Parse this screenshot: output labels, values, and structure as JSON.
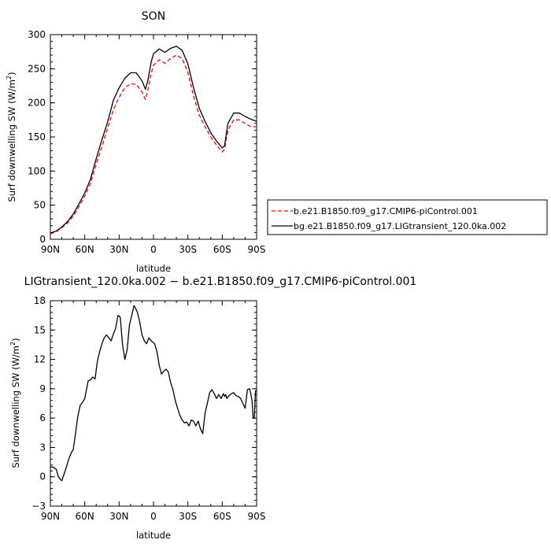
{
  "chart_data": [
    {
      "type": "line",
      "title": "SON",
      "xlabel": "latitude",
      "ylabel": "Surf downwelling SW (W/m²)",
      "ylabel_prefix": "Surf downwelling SW (W/m",
      "ylabel_sup": "2",
      "ylabel_suffix": ")",
      "xlim": [
        90,
        -90
      ],
      "ylim": [
        0,
        300
      ],
      "xticks": [
        90,
        60,
        30,
        0,
        -30,
        -60,
        -90
      ],
      "xtick_labels": [
        "90N",
        "60N",
        "30N",
        "0",
        "30S",
        "60S",
        "90S"
      ],
      "yticks": [
        0,
        50,
        100,
        150,
        200,
        250,
        300
      ],
      "ytick_labels": [
        "0",
        "50",
        "100",
        "150",
        "200",
        "250",
        "300"
      ],
      "legend_position": "right",
      "x": [
        90,
        85,
        80,
        75,
        70,
        65,
        60,
        55,
        50,
        45,
        40,
        35,
        30,
        25,
        20,
        15,
        10,
        7,
        5,
        2,
        0,
        -5,
        -10,
        -15,
        -20,
        -25,
        -30,
        -35,
        -40,
        -45,
        -50,
        -55,
        -60,
        -62,
        -65,
        -70,
        -75,
        -80,
        -85,
        -90
      ],
      "series": [
        {
          "name": "b.e21.B1850.f09_g17.CMIP6-piControl.001",
          "color": "#ff0000",
          "dash": "dashed",
          "values": [
            8,
            11,
            17,
            24,
            34,
            48,
            63,
            82,
            110,
            136,
            163,
            190,
            208,
            222,
            228,
            227,
            216,
            205,
            218,
            243,
            255,
            263,
            258,
            265,
            270,
            265,
            245,
            210,
            182,
            165,
            150,
            138,
            128,
            132,
            160,
            175,
            175,
            170,
            165,
            165
          ]
        },
        {
          "name": "bg.e21.B1850.f09_g17.LIGtransient_120.0ka.002",
          "color": "#000000",
          "dash": "solid",
          "values": [
            9,
            12,
            18,
            26,
            37,
            52,
            68,
            88,
            118,
            146,
            172,
            204,
            222,
            236,
            244,
            244,
            232,
            220,
            232,
            260,
            272,
            279,
            274,
            280,
            283,
            277,
            257,
            222,
            192,
            173,
            156,
            144,
            134,
            137,
            170,
            185,
            185,
            180,
            176,
            173
          ]
        }
      ]
    },
    {
      "type": "line",
      "title": "LIGtransient_120.0ka.002 − b.e21.B1850.f09_g17.CMIP6-piControl.001",
      "xlabel": "latitude",
      "ylabel": "Surf downwelling SW (W/m²)",
      "ylabel_prefix": "Surf downwelling SW (W/m",
      "ylabel_sup": "2",
      "ylabel_suffix": ")",
      "xlim": [
        90,
        -90
      ],
      "ylim": [
        -3,
        18
      ],
      "xticks": [
        90,
        60,
        30,
        0,
        -30,
        -60,
        -90
      ],
      "xtick_labels": [
        "90N",
        "60N",
        "30N",
        "0",
        "30S",
        "60S",
        "90S"
      ],
      "yticks": [
        -3,
        0,
        3,
        6,
        9,
        12,
        15,
        18
      ],
      "ytick_labels": [
        "−3",
        "0",
        "3",
        "6",
        "9",
        "12",
        "15",
        "18"
      ],
      "x": [
        90,
        88,
        85,
        83,
        81,
        80,
        78,
        76,
        74,
        72,
        70,
        68,
        66,
        64,
        62,
        60,
        57,
        55,
        53,
        51,
        49,
        47,
        45,
        43,
        41,
        39,
        37,
        35,
        33,
        31,
        29,
        27,
        25,
        23,
        21,
        19,
        17,
        16,
        14,
        12,
        10,
        8,
        6,
        4,
        2,
        1,
        0,
        -1,
        -3,
        -5,
        -7,
        -9,
        -11,
        -13,
        -15,
        -17,
        -19,
        -21,
        -23,
        -25,
        -27,
        -29,
        -31,
        -33,
        -35,
        -37,
        -39,
        -41,
        -43,
        -45,
        -47,
        -49,
        -51,
        -53,
        -55,
        -57,
        -59,
        -61,
        -62,
        -63,
        -64,
        -66,
        -68,
        -70,
        -72,
        -74,
        -76,
        -78,
        -80,
        -82,
        -84,
        -86,
        -87,
        -88,
        -89,
        -90
      ],
      "series": [
        {
          "name": "",
          "color": "#000000",
          "dash": "solid",
          "values": [
            1.0,
            1.0,
            0.8,
            0.0,
            -0.3,
            -0.4,
            0.3,
            1.0,
            1.8,
            2.4,
            2.8,
            4.5,
            6.2,
            7.3,
            7.6,
            8.0,
            9.8,
            9.9,
            10.2,
            10.0,
            11.8,
            12.8,
            13.6,
            14.2,
            14.5,
            14.2,
            13.9,
            14.6,
            15.2,
            16.5,
            16.3,
            13.5,
            12.0,
            13.0,
            15.5,
            16.5,
            17.5,
            17.3,
            16.8,
            15.8,
            14.5,
            13.9,
            13.6,
            14.2,
            13.9,
            13.8,
            13.7,
            13.6,
            12.8,
            11.4,
            10.5,
            10.8,
            11.0,
            10.7,
            9.6,
            8.9,
            7.8,
            7.0,
            6.3,
            5.8,
            5.5,
            5.6,
            5.2,
            5.8,
            5.7,
            5.2,
            5.7,
            4.9,
            4.4,
            6.5,
            7.5,
            8.6,
            8.9,
            8.5,
            8.0,
            8.4,
            8.0,
            8.5,
            8.2,
            8.4,
            8.0,
            8.3,
            8.5,
            8.6,
            8.3,
            8.2,
            8.0,
            7.5,
            7.0,
            8.9,
            9.0,
            7.8,
            6.0,
            6.0,
            8.8,
            8.8
          ]
        }
      ]
    }
  ]
}
